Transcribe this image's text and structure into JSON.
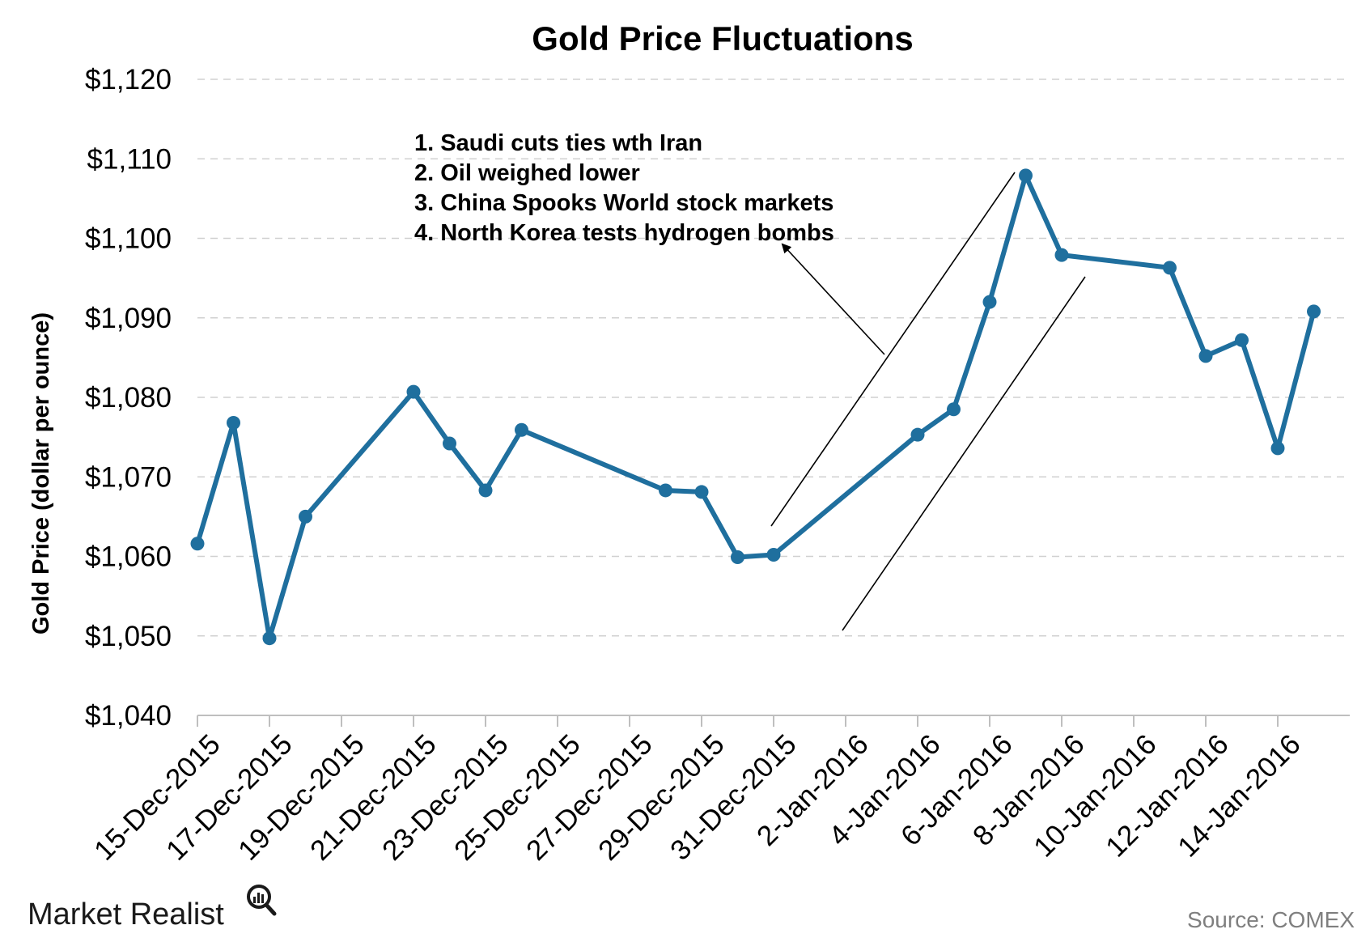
{
  "chart_data": {
    "type": "line",
    "title": "Gold Price Fluctuations",
    "ylabel": "Gold Price (dollar per ounce)",
    "xlabel": "",
    "ylim": [
      1040,
      1120
    ],
    "y_ticks": [
      "$1,040",
      "$1,050",
      "$1,060",
      "$1,070",
      "$1,080",
      "$1,090",
      "$1,100",
      "$1,110",
      "$1,120"
    ],
    "y_tick_values": [
      1040,
      1050,
      1060,
      1070,
      1080,
      1090,
      1100,
      1110,
      1120
    ],
    "x_range": [
      "2015-12-15",
      "2016-01-16"
    ],
    "x_ticks": [
      "15-Dec-2015",
      "17-Dec-2015",
      "19-Dec-2015",
      "21-Dec-2015",
      "23-Dec-2015",
      "25-Dec-2015",
      "27-Dec-2015",
      "29-Dec-2015",
      "31-Dec-2015",
      "2-Jan-2016",
      "4-Jan-2016",
      "6-Jan-2016",
      "8-Jan-2016",
      "10-Jan-2016",
      "12-Jan-2016",
      "14-Jan-2016"
    ],
    "x_tick_dates": [
      "2015-12-15",
      "2015-12-17",
      "2015-12-19",
      "2015-12-21",
      "2015-12-23",
      "2015-12-25",
      "2015-12-27",
      "2015-12-29",
      "2015-12-31",
      "2016-01-02",
      "2016-01-04",
      "2016-01-06",
      "2016-01-08",
      "2016-01-10",
      "2016-01-12",
      "2016-01-14"
    ],
    "grid": true,
    "line_color": "#1f6f9e",
    "series": [
      {
        "points": [
          {
            "x": "2015-12-15",
            "y": 1061.6
          },
          {
            "x": "2015-12-16",
            "y": 1076.8
          },
          {
            "x": "2015-12-17",
            "y": 1049.7
          },
          {
            "x": "2015-12-18",
            "y": 1065.0
          },
          {
            "x": "2015-12-21",
            "y": 1080.7
          },
          {
            "x": "2015-12-22",
            "y": 1074.2
          },
          {
            "x": "2015-12-23",
            "y": 1068.3
          },
          {
            "x": "2015-12-24",
            "y": 1075.9
          },
          {
            "x": "2015-12-28",
            "y": 1068.3
          },
          {
            "x": "2015-12-29",
            "y": 1068.1
          },
          {
            "x": "2015-12-30",
            "y": 1059.9
          },
          {
            "x": "2015-12-31",
            "y": 1060.2
          },
          {
            "x": "2016-01-04",
            "y": 1075.3
          },
          {
            "x": "2016-01-05",
            "y": 1078.5
          },
          {
            "x": "2016-01-06",
            "y": 1092.0
          },
          {
            "x": "2016-01-07",
            "y": 1107.9
          },
          {
            "x": "2016-01-08",
            "y": 1097.9
          },
          {
            "x": "2016-01-11",
            "y": 1096.3
          },
          {
            "x": "2016-01-12",
            "y": 1085.2
          },
          {
            "x": "2016-01-13",
            "y": 1087.2
          },
          {
            "x": "2016-01-14",
            "y": 1073.6
          },
          {
            "x": "2016-01-15",
            "y": 1090.8
          }
        ]
      }
    ],
    "annotations": [
      "1. Saudi cuts ties wth Iran",
      "2. Oil weighed lower",
      "3. China Spooks World stock markets",
      "4. North Korea tests hydrogen  bombs"
    ]
  },
  "footer": {
    "brand": "Market Realist",
    "source": "Source: COMEX"
  }
}
